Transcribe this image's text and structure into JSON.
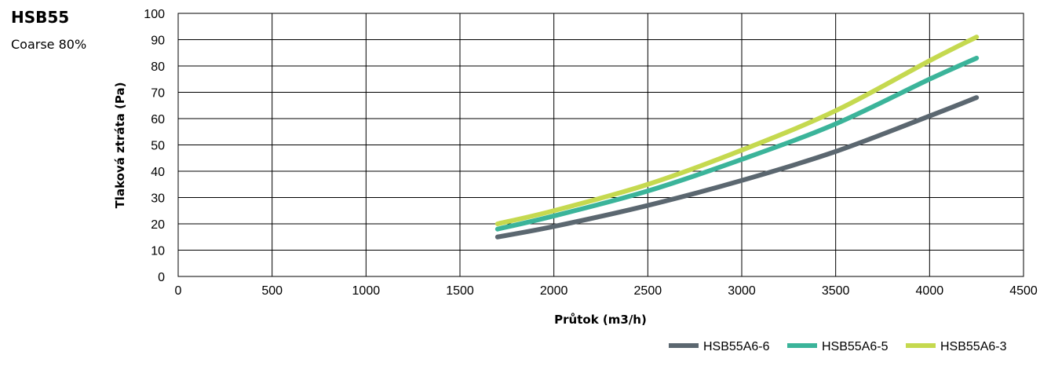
{
  "header": {
    "title": "HSB55",
    "subtitle": "Coarse 80%"
  },
  "chart_data": {
    "type": "line",
    "title": "HSB55",
    "subtitle": "Coarse 80%",
    "xlabel": "Průtok (m3/h)",
    "ylabel": "Tlaková ztráta (Pa)",
    "xlim": [
      0,
      4500
    ],
    "ylim": [
      0,
      100
    ],
    "xticks": [
      0,
      500,
      1000,
      1500,
      2000,
      2500,
      3000,
      3500,
      4000,
      4500
    ],
    "yticks": [
      0,
      10,
      20,
      30,
      40,
      50,
      60,
      70,
      80,
      90,
      100
    ],
    "grid": true,
    "legend_position": "bottom-right",
    "x": [
      1700,
      2000,
      2500,
      3000,
      3500,
      4000,
      4250
    ],
    "series": [
      {
        "name": "HSB55A6-6",
        "color": "#5b6770",
        "values": [
          15,
          19,
          27,
          36.5,
          47.5,
          61,
          68
        ]
      },
      {
        "name": "HSB55A6-5",
        "color": "#3bb49a",
        "values": [
          18,
          23,
          32.5,
          44.5,
          58,
          75,
          83
        ]
      },
      {
        "name": "HSB55A6-3",
        "color": "#c5d94f",
        "values": [
          20,
          25,
          35,
          48,
          63,
          82,
          91
        ]
      }
    ]
  }
}
